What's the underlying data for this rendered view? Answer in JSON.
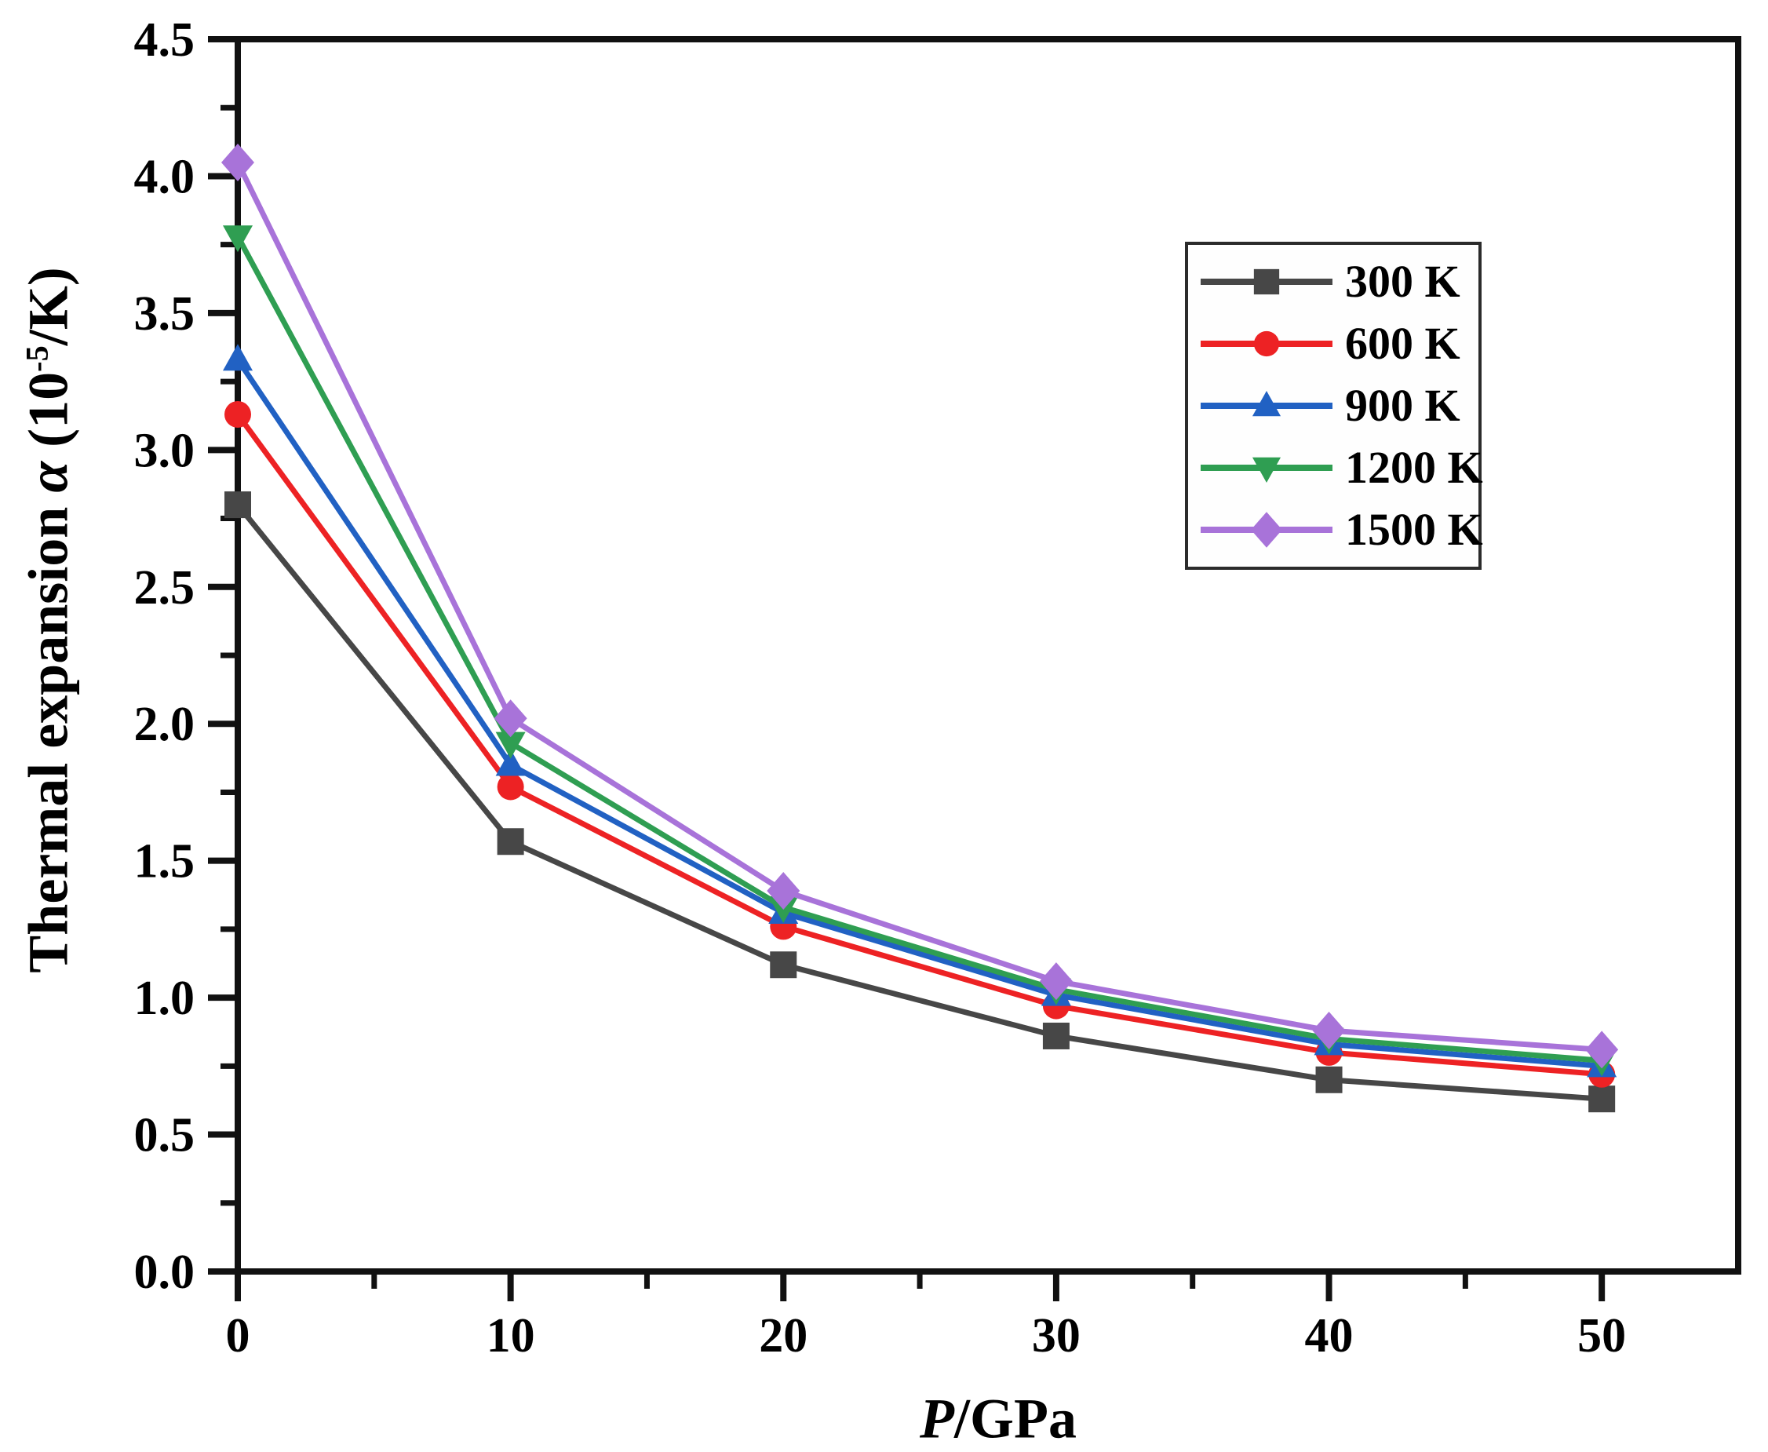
{
  "chart_data": {
    "type": "line",
    "title": "",
    "xlabel": {
      "symbol": "P",
      "rest": "/GPa"
    },
    "ylabel": {
      "prefix": "Thermal expansion ",
      "symbol": "α",
      "unit_open": " (10",
      "unit_exp": "-5",
      "unit_close": "/K)"
    },
    "xlim": [
      0,
      55
    ],
    "ylim": [
      0,
      4.5
    ],
    "grid": false,
    "axis_color": "#111111",
    "background": "#ffffff",
    "legend_position": "upper-right",
    "x": [
      0,
      10,
      20,
      30,
      40,
      50
    ],
    "x_tick_labels": [
      "0",
      "10",
      "20",
      "30",
      "40",
      "50"
    ],
    "x_minor_ticks": [
      5,
      15,
      25,
      35,
      45
    ],
    "y_tick_values": [
      0,
      0.5,
      1,
      1.5,
      2,
      2.5,
      3,
      3.5,
      4,
      4.5
    ],
    "y_tick_labels": [
      "0.0",
      "0.5",
      "1.0",
      "1.5",
      "2.0",
      "2.5",
      "3.0",
      "3.5",
      "4.0",
      "4.5"
    ],
    "y_minor_ticks": [
      0.25,
      0.75,
      1.25,
      1.75,
      2.25,
      2.75,
      3.25,
      3.75,
      4.25
    ],
    "series": [
      {
        "name": "300 K",
        "color": "#474747",
        "marker": "square",
        "values": [
          2.8,
          1.57,
          1.12,
          0.86,
          0.7,
          0.63
        ]
      },
      {
        "name": "600 K",
        "color": "#ed2224",
        "marker": "circle",
        "values": [
          3.13,
          1.77,
          1.26,
          0.97,
          0.8,
          0.72
        ]
      },
      {
        "name": "900 K",
        "color": "#2161c3",
        "marker": "triangle-up",
        "values": [
          3.33,
          1.85,
          1.31,
          1.01,
          0.83,
          0.75
        ]
      },
      {
        "name": "1200 K",
        "color": "#2f9e52",
        "marker": "triangle-down",
        "values": [
          3.78,
          1.93,
          1.33,
          1.03,
          0.85,
          0.77
        ]
      },
      {
        "name": "1500 K",
        "color": "#a873d9",
        "marker": "diamond",
        "values": [
          4.05,
          2.02,
          1.39,
          1.06,
          0.88,
          0.81
        ]
      }
    ]
  }
}
